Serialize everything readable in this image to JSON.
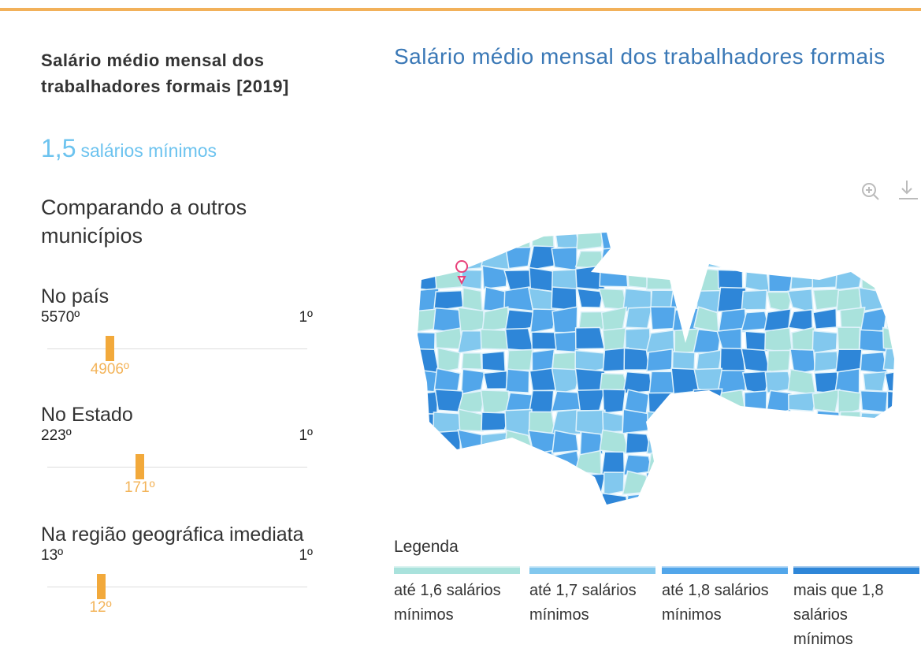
{
  "panel": {
    "title": "Salário médio mensal dos trabalhadores formais [2019]",
    "value": "1,5",
    "unit": "salários mínimos",
    "compare_heading": "Comparando a outros municípios",
    "rankings": [
      {
        "label": "No país",
        "worst": "5570º",
        "best": "1º",
        "position": "4906º"
      },
      {
        "label": "No Estado",
        "worst": "223º",
        "best": "1º",
        "position": "171º"
      },
      {
        "label": "Na região geográfica imediata",
        "worst": "13º",
        "best": "1º",
        "position": "12º"
      }
    ]
  },
  "map": {
    "title": "Salário médio mensal dos trabalhadores formais",
    "legend_title": "Legenda",
    "legend": [
      {
        "label": "até 1,6 salários mínimos",
        "color": "#a9e2dc"
      },
      {
        "label": "até 1,7 salários mínimos",
        "color": "#82c8ee"
      },
      {
        "label": "até 1,8 salários mínimos",
        "color": "#52a6ea"
      },
      {
        "label": "mais que 1,8 salários mínimos",
        "color": "#2e86d8"
      }
    ]
  }
}
